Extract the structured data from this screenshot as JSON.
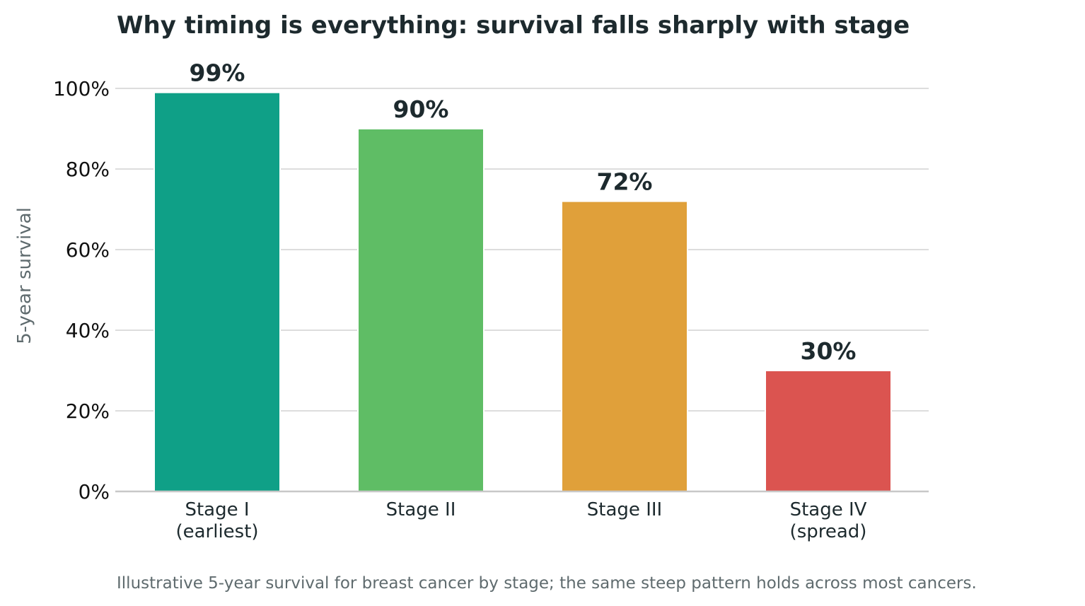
{
  "chart_data": {
    "type": "bar",
    "title": "Why timing is everything: survival falls sharply with stage",
    "ylabel": "5-year survival",
    "xlabel": "",
    "ylim": [
      0,
      100
    ],
    "yticks": [
      0,
      20,
      40,
      60,
      80,
      100
    ],
    "ytick_labels": [
      "0%",
      "20%",
      "40%",
      "60%",
      "80%",
      "100%"
    ],
    "grid": "horizontal",
    "categories": [
      [
        "Stage I",
        "(earliest)"
      ],
      [
        "Stage II"
      ],
      [
        "Stage III"
      ],
      [
        "Stage IV",
        "(spread)"
      ]
    ],
    "values": [
      99,
      90,
      72,
      30
    ],
    "value_labels": [
      "99%",
      "90%",
      "72%",
      "30%"
    ],
    "colors": [
      "#0fa087",
      "#5fbd65",
      "#e0a03a",
      "#db5450"
    ],
    "caption": "Illustrative 5-year survival for breast cancer by stage; the same steep pattern holds across most cancers."
  }
}
